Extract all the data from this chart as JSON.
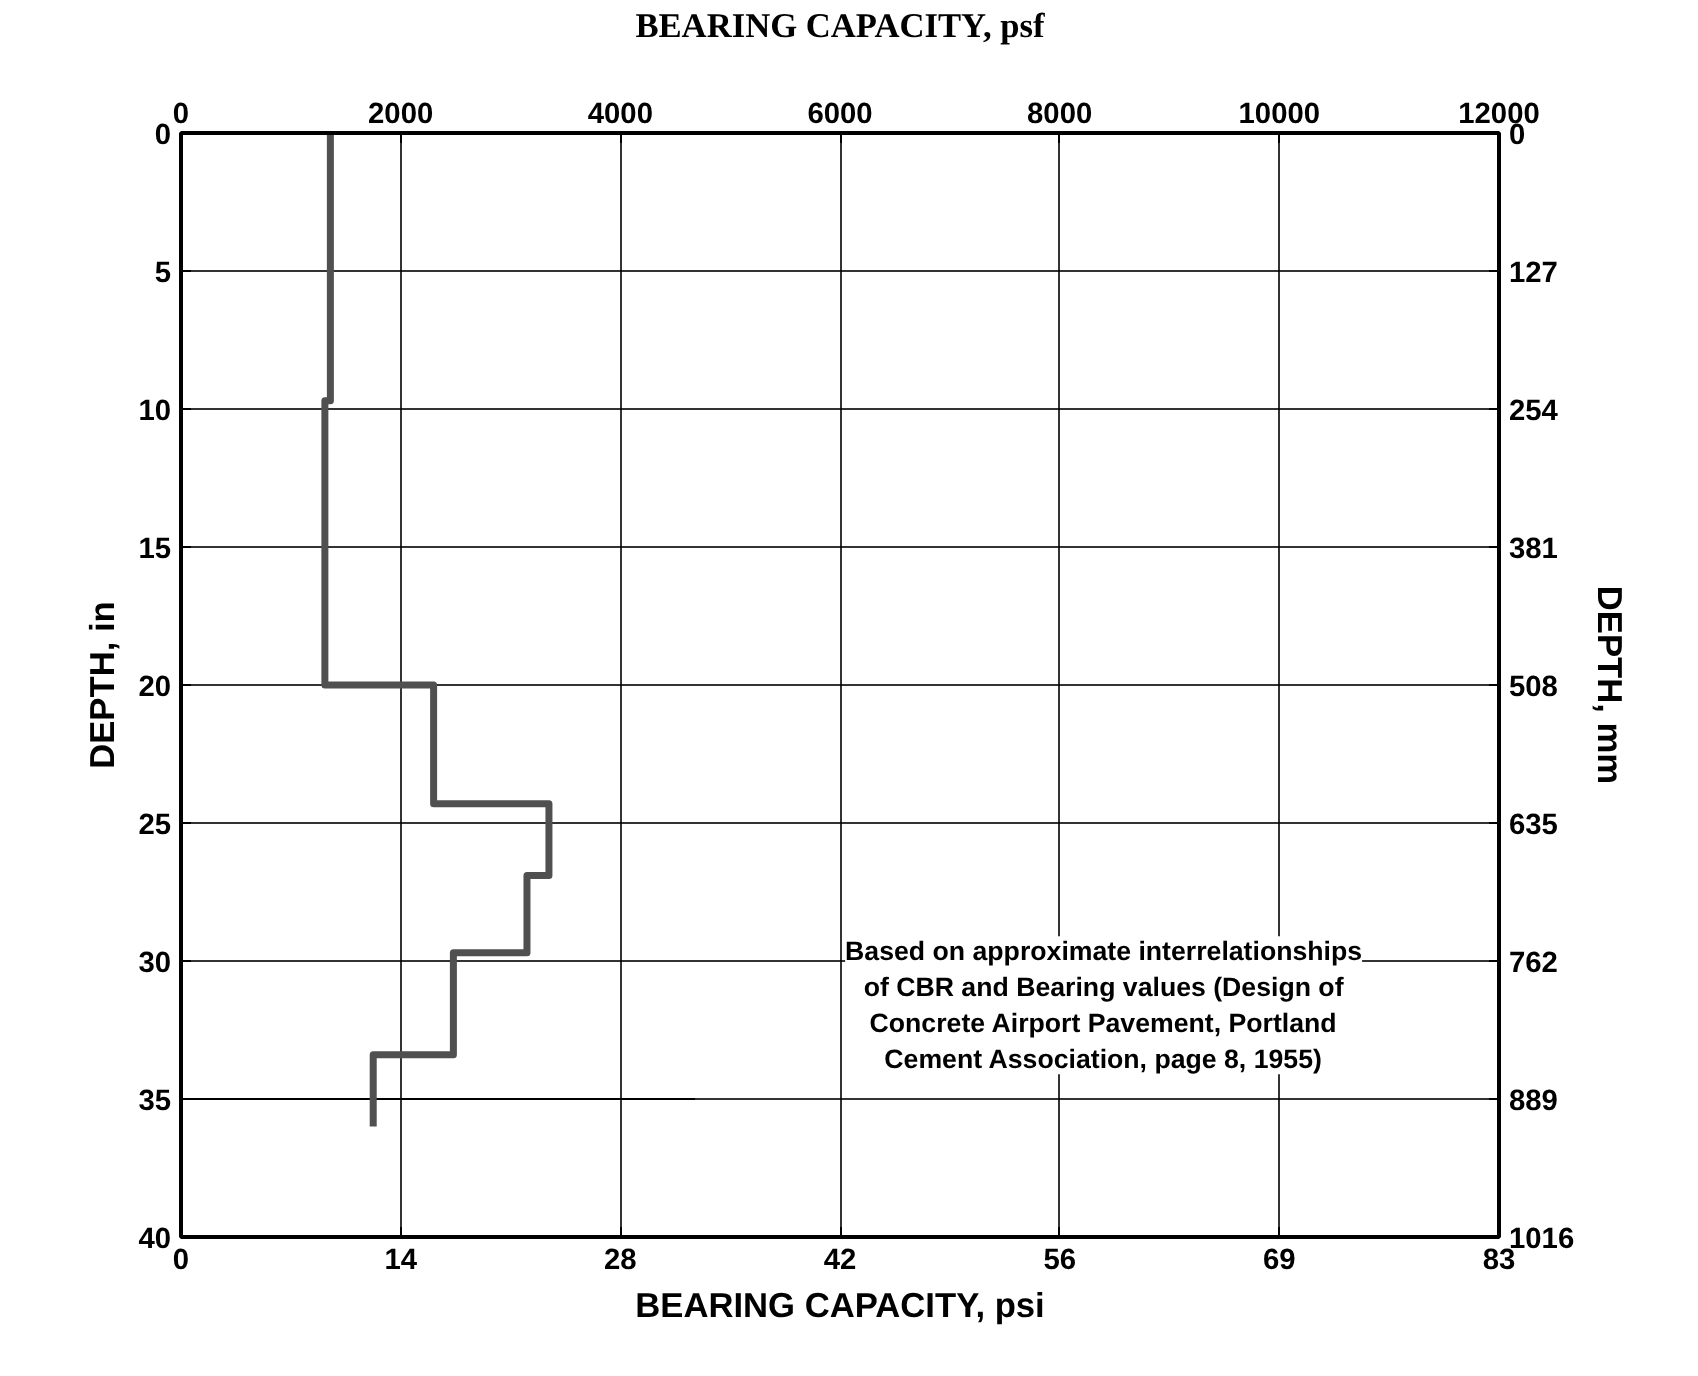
{
  "chart_data": {
    "type": "line",
    "xlabel": "BEARING CAPACITY, psi",
    "x2label": "BEARING CAPACITY, psf",
    "ylabel": "DEPTH, in",
    "y2label": "DEPTH, mm",
    "xlim": [
      0,
      83.33
    ],
    "xticks": [
      0,
      {
        "value": 13.89,
        "label": "14"
      },
      {
        "value": 27.78,
        "label": "28"
      },
      {
        "value": 41.67,
        "label": "42"
      },
      {
        "value": 55.56,
        "label": "56"
      },
      {
        "value": 69.44,
        "label": "69"
      },
      {
        "value": 83.33,
        "label": "83"
      }
    ],
    "x2lim": [
      0,
      12000
    ],
    "x2ticks": [
      0,
      2000,
      4000,
      6000,
      8000,
      10000,
      12000
    ],
    "ylim": [
      40,
      0
    ],
    "yticks": [
      0,
      5,
      10,
      15,
      20,
      25,
      30,
      35,
      40
    ],
    "y2lim": [
      1016,
      0
    ],
    "y2ticks": [
      0,
      127,
      254,
      381,
      508,
      635,
      762,
      889,
      1016
    ],
    "grid": true,
    "marker": "none",
    "line_style": "solid",
    "series": [
      {
        "color": "#505050",
        "axis": "x2",
        "x": [
          1360,
          1360,
          1310,
          1310,
          2300,
          2300,
          3350,
          3350,
          3150,
          3150,
          2480,
          2480,
          1750,
          1750
        ],
        "values": [
          0,
          9.7,
          9.7,
          20,
          20,
          24.3,
          24.3,
          26.9,
          26.9,
          29.7,
          29.7,
          33.4,
          33.4,
          36
        ]
      }
    ],
    "ref_lines": [
      {
        "axis": "y",
        "value": 35,
        "color": "#000000",
        "line_style": "solid"
      }
    ],
    "annotations": [
      "Based on approximate interrelationships of CBR and Bearing values (Design of Concrete Airport Pavement, Portland Cement Association, page 8, 1955)"
    ]
  }
}
